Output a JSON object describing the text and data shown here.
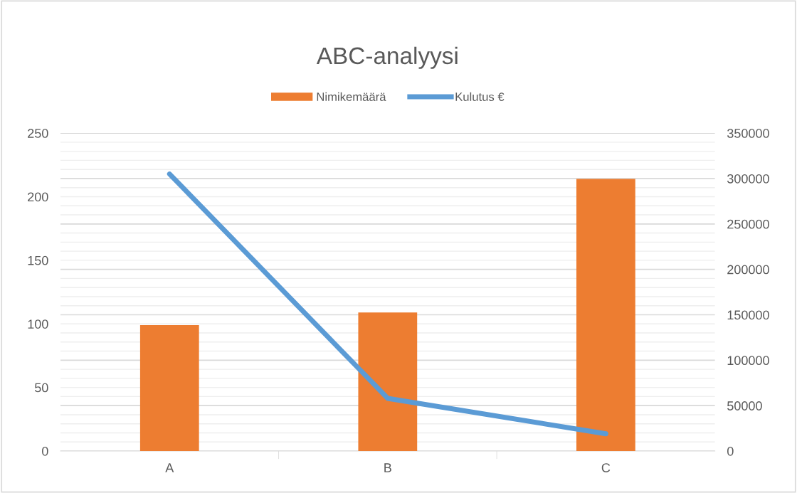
{
  "chart_data": {
    "type": "bar",
    "title": "ABC-analyysi",
    "categories": [
      "A",
      "B",
      "C"
    ],
    "series": [
      {
        "name": "Nimikemäärä",
        "color": "#ed7d31",
        "values": [
          99,
          109,
          214
        ]
      },
      {
        "name": "Kulutus €",
        "type": "line",
        "axis": "y2",
        "color": "#5b9bd5",
        "values": [
          305000,
          58000,
          19000
        ]
      }
    ],
    "ylim": [
      0,
      250
    ],
    "yticks": [
      0,
      50,
      100,
      150,
      200,
      250
    ],
    "y2lim": [
      0,
      350000
    ],
    "y2ticks": [
      0,
      {
        "value": 10000,
        "label": null
      },
      {
        "value": 20000,
        "label": null
      },
      {
        "value": 30000,
        "label": null
      },
      {
        "value": 40000,
        "label": null
      },
      50000,
      {
        "value": 60000,
        "label": null
      },
      {
        "value": 70000,
        "label": null
      },
      {
        "value": 80000,
        "label": null
      },
      {
        "value": 90000,
        "label": null
      },
      100000,
      {
        "value": 110000,
        "label": null
      },
      {
        "value": 120000,
        "label": null
      },
      {
        "value": 130000,
        "label": null
      },
      {
        "value": 140000,
        "label": null
      },
      150000,
      {
        "value": 160000,
        "label": null
      },
      {
        "value": 170000,
        "label": null
      },
      {
        "value": 180000,
        "label": null
      },
      {
        "value": 190000,
        "label": null
      },
      200000,
      {
        "value": 210000,
        "label": null
      },
      {
        "value": 220000,
        "label": null
      },
      {
        "value": 230000,
        "label": null
      },
      {
        "value": 240000,
        "label": null
      },
      250000,
      {
        "value": 260000,
        "label": null
      },
      {
        "value": 270000,
        "label": null
      },
      {
        "value": 280000,
        "label": null
      },
      {
        "value": 290000,
        "label": null
      },
      300000,
      {
        "value": 310000,
        "label": null
      },
      {
        "value": 320000,
        "label": null
      },
      {
        "value": 330000,
        "label": null
      },
      {
        "value": 340000,
        "label": null
      },
      350000
    ],
    "grid": "y2",
    "legend": "top",
    "marker": "none",
    "line_style": "solid"
  }
}
